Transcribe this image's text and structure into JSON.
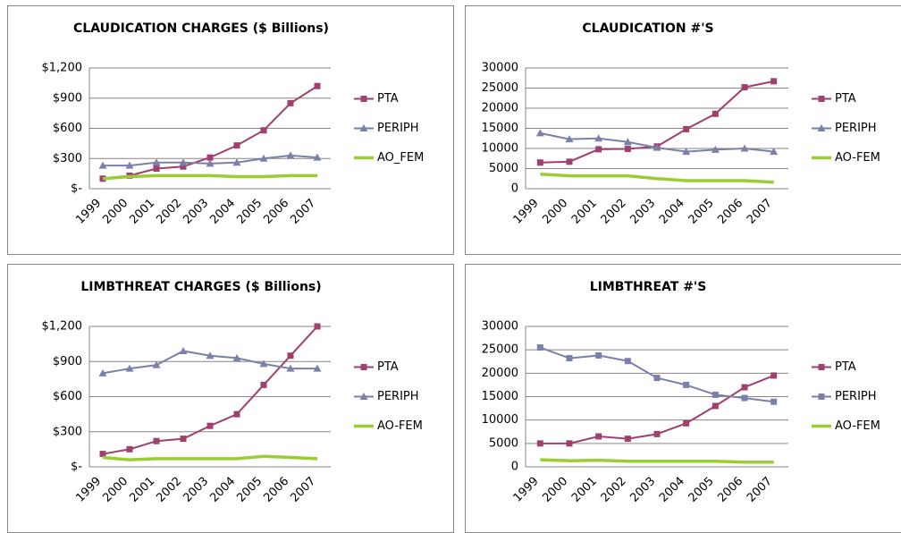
{
  "chart_data": [
    {
      "type": "line",
      "title": "CLAUDICATION CHARGES ($ Billions)",
      "categories": [
        "1999",
        "2000",
        "2001",
        "2002",
        "2003",
        "2004",
        "2005",
        "2006",
        "2007"
      ],
      "ylim": [
        0,
        1200
      ],
      "yticks": [
        {
          "value": 0,
          "label": "$-"
        },
        {
          "value": 300,
          "label": "$300"
        },
        {
          "value": 600,
          "label": "$600"
        },
        {
          "value": 900,
          "label": "$900"
        },
        {
          "value": 1200,
          "label": "$1,200"
        }
      ],
      "grid": true,
      "legend": "right",
      "series": [
        {
          "name": "PTA",
          "color": "#a0406e",
          "marker": "square",
          "values": [
            100,
            130,
            200,
            220,
            310,
            430,
            580,
            850,
            1020
          ]
        },
        {
          "name": "PERIPH",
          "color": "#7b80aa",
          "marker": "triangle",
          "values": [
            230,
            230,
            260,
            260,
            250,
            260,
            300,
            330,
            310
          ]
        },
        {
          "name": "AO_FEM",
          "color": "#9acd32",
          "marker": "none",
          "values": [
            100,
            120,
            130,
            130,
            130,
            120,
            120,
            130,
            130
          ]
        }
      ]
    },
    {
      "type": "line",
      "title": "CLAUDICATION #'S",
      "categories": [
        "1999",
        "2000",
        "2001",
        "2002",
        "2003",
        "2004",
        "2005",
        "2006",
        "2007"
      ],
      "ylim": [
        0,
        30000
      ],
      "yticks": [
        0,
        5000,
        10000,
        15000,
        20000,
        25000,
        30000
      ],
      "grid": true,
      "legend": "right",
      "series": [
        {
          "name": "PTA",
          "color": "#a0406e",
          "marker": "square",
          "values": [
            6500,
            6700,
            9800,
            9900,
            10500,
            14800,
            18600,
            25200,
            26700
          ]
        },
        {
          "name": "PERIPH",
          "color": "#7b80aa",
          "marker": "triangle",
          "values": [
            13800,
            12300,
            12500,
            11600,
            10200,
            9200,
            9700,
            10000,
            9200
          ]
        },
        {
          "name": "AO-FEM",
          "color": "#9acd32",
          "marker": "none",
          "values": [
            3600,
            3200,
            3200,
            3200,
            2500,
            2000,
            2000,
            2000,
            1600
          ]
        }
      ]
    },
    {
      "type": "line",
      "title": "LIMBTHREAT CHARGES ($ Billions)",
      "categories": [
        "1999",
        "2000",
        "2001",
        "2002",
        "2003",
        "2004",
        "2005",
        "2006",
        "2007"
      ],
      "ylim": [
        0,
        1200
      ],
      "yticks": [
        {
          "value": 0,
          "label": "$-"
        },
        {
          "value": 300,
          "label": "$300"
        },
        {
          "value": 600,
          "label": "$600"
        },
        {
          "value": 900,
          "label": "$900"
        },
        {
          "value": 1200,
          "label": "$1,200"
        }
      ],
      "grid": true,
      "legend": "right",
      "series": [
        {
          "name": "PTA",
          "color": "#a0406e",
          "marker": "square",
          "values": [
            110,
            150,
            220,
            240,
            350,
            450,
            700,
            950,
            1200
          ]
        },
        {
          "name": "PERIPH",
          "color": "#7b80aa",
          "marker": "triangle",
          "values": [
            800,
            840,
            870,
            990,
            950,
            930,
            880,
            840,
            840
          ]
        },
        {
          "name": "AO-FEM",
          "color": "#9acd32",
          "marker": "none",
          "values": [
            80,
            60,
            70,
            70,
            70,
            70,
            90,
            80,
            70
          ]
        }
      ]
    },
    {
      "type": "line",
      "title": "LIMBTHREAT #'S",
      "categories": [
        "1999",
        "2000",
        "2001",
        "2002",
        "2003",
        "2004",
        "2005",
        "2006",
        "2007"
      ],
      "ylim": [
        0,
        30000
      ],
      "yticks": [
        0,
        5000,
        10000,
        15000,
        20000,
        25000,
        30000
      ],
      "grid": true,
      "legend": "right",
      "series": [
        {
          "name": "PTA",
          "color": "#a0406e",
          "marker": "square",
          "values": [
            5000,
            5000,
            6500,
            6000,
            7000,
            9300,
            13000,
            17000,
            19500
          ]
        },
        {
          "name": "PERIPH",
          "color": "#7b80aa",
          "marker": "square",
          "values": [
            25500,
            23200,
            23800,
            22600,
            19000,
            17500,
            15400,
            14700,
            13900
          ]
        },
        {
          "name": "AO-FEM",
          "color": "#9acd32",
          "marker": "none",
          "values": [
            1500,
            1300,
            1400,
            1200,
            1200,
            1200,
            1200,
            1000,
            1000
          ]
        }
      ]
    }
  ]
}
